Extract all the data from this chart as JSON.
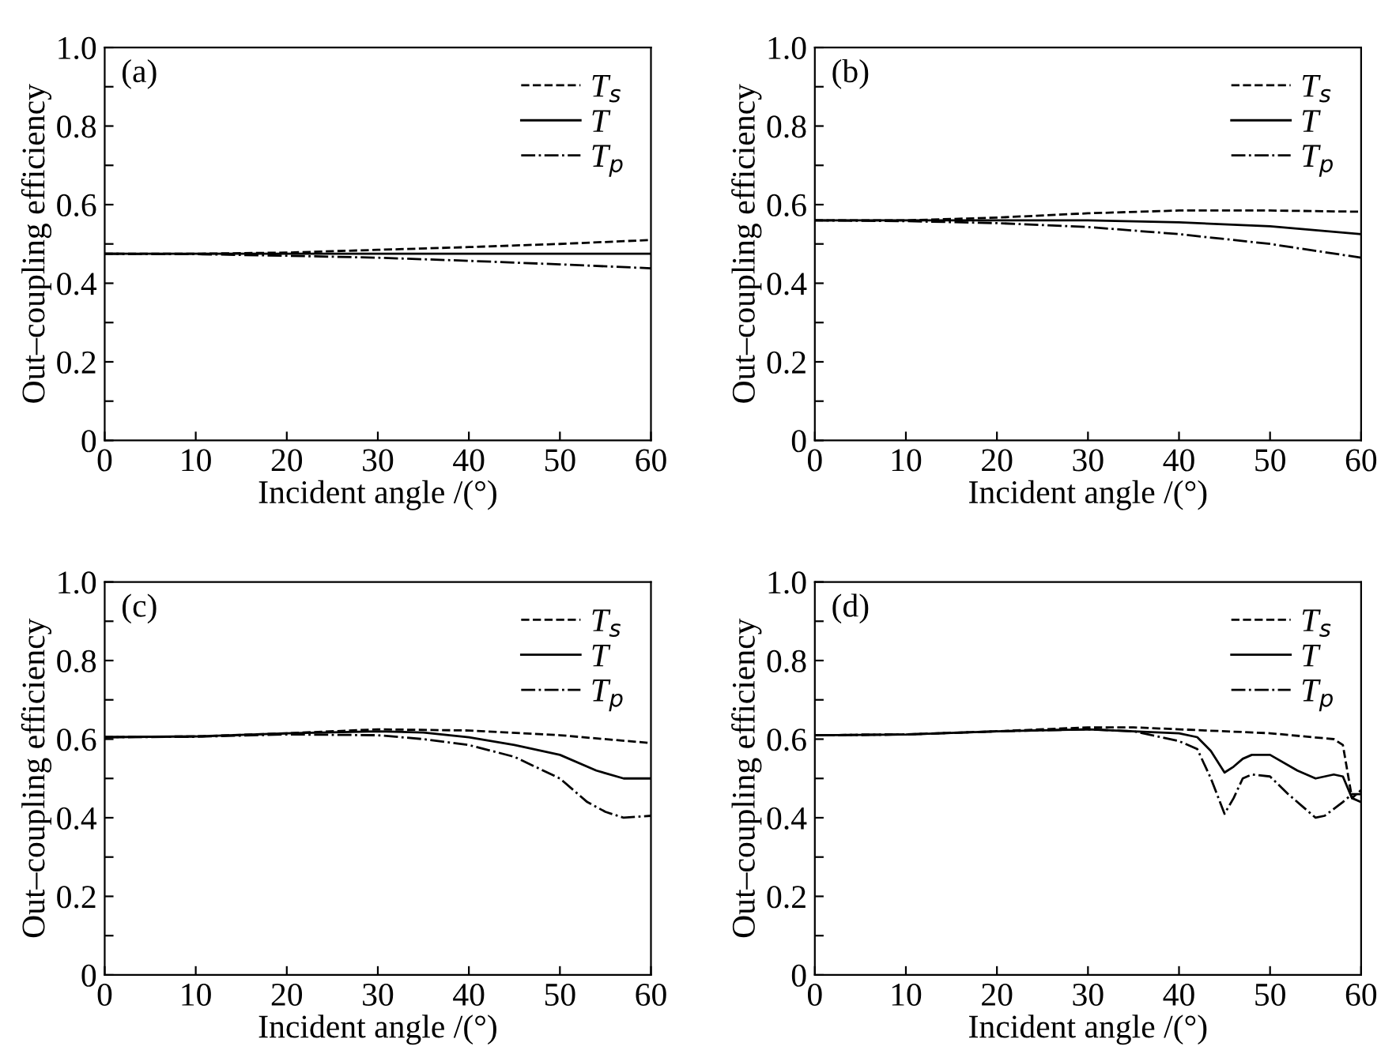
{
  "chart_data": [
    {
      "type": "line",
      "xlabel": "Incident angle /(°)",
      "ylabel": "Out–coupling efficiency",
      "annotations": [
        "(a)"
      ],
      "xlim": [
        0,
        60
      ],
      "ylim": [
        0,
        1.0
      ],
      "xticks": [
        0,
        10,
        20,
        30,
        40,
        50,
        60
      ],
      "yticks": [
        0,
        {
          "value": 0.1,
          "label": null
        },
        0.2,
        {
          "value": 0.3,
          "label": null
        },
        0.4,
        {
          "value": 0.5,
          "label": null
        },
        0.6,
        {
          "value": 0.7,
          "label": null
        },
        0.8,
        {
          "value": 0.9,
          "label": null
        },
        {
          "value": 1.0,
          "label": "1.0"
        }
      ],
      "grid": false,
      "legend": "top right",
      "series": [
        {
          "name": "T$_{s}$",
          "color": "#000000",
          "line_style": "dashed",
          "x": [
            0,
            10,
            20,
            30,
            40,
            50,
            60
          ],
          "values": [
            0.475,
            0.475,
            0.478,
            0.485,
            0.492,
            0.5,
            0.51
          ]
        },
        {
          "name": "T",
          "color": "#000000",
          "line_style": "solid",
          "x": [
            0,
            10,
            20,
            30,
            40,
            50,
            60
          ],
          "values": [
            0.475,
            0.475,
            0.475,
            0.475,
            0.475,
            0.475,
            0.475
          ]
        },
        {
          "name": "T$_{p}$",
          "color": "#000000",
          "line_style": "dashdot",
          "x": [
            0,
            10,
            20,
            30,
            40,
            50,
            60
          ],
          "values": [
            0.475,
            0.474,
            0.47,
            0.465,
            0.457,
            0.448,
            0.438
          ]
        }
      ]
    },
    {
      "type": "line",
      "xlabel": "Incident angle /(°)",
      "ylabel": "Out–coupling efficiency",
      "annotations": [
        "(b)"
      ],
      "xlim": [
        0,
        60
      ],
      "ylim": [
        0,
        1.0
      ],
      "xticks": [
        0,
        10,
        20,
        30,
        40,
        50,
        60
      ],
      "yticks": [
        0,
        {
          "value": 0.1,
          "label": null
        },
        0.2,
        {
          "value": 0.3,
          "label": null
        },
        0.4,
        {
          "value": 0.5,
          "label": null
        },
        0.6,
        {
          "value": 0.7,
          "label": null
        },
        0.8,
        {
          "value": 0.9,
          "label": null
        },
        {
          "value": 1.0,
          "label": "1.0"
        }
      ],
      "grid": false,
      "legend": "top right",
      "series": [
        {
          "name": "T$_{s}$",
          "color": "#000000",
          "line_style": "dashed",
          "x": [
            0,
            10,
            20,
            30,
            40,
            50,
            60
          ],
          "values": [
            0.56,
            0.56,
            0.567,
            0.578,
            0.585,
            0.585,
            0.582
          ]
        },
        {
          "name": "T",
          "color": "#000000",
          "line_style": "solid",
          "x": [
            0,
            10,
            20,
            30,
            40,
            50,
            60
          ],
          "values": [
            0.56,
            0.56,
            0.56,
            0.56,
            0.555,
            0.545,
            0.525
          ]
        },
        {
          "name": "T$_{p}$",
          "color": "#000000",
          "line_style": "dashdot",
          "x": [
            0,
            10,
            20,
            30,
            40,
            50,
            60
          ],
          "values": [
            0.56,
            0.558,
            0.553,
            0.543,
            0.525,
            0.5,
            0.465
          ]
        }
      ]
    },
    {
      "type": "line",
      "xlabel": "Incident angle /(°)",
      "ylabel": "Out–coupling efficiency",
      "annotations": [
        "(c)"
      ],
      "xlim": [
        0,
        60
      ],
      "ylim": [
        0,
        1.0
      ],
      "xticks": [
        0,
        10,
        20,
        30,
        40,
        50,
        60
      ],
      "yticks": [
        0,
        {
          "value": 0.1,
          "label": null
        },
        0.2,
        {
          "value": 0.3,
          "label": null
        },
        0.4,
        {
          "value": 0.5,
          "label": null
        },
        0.6,
        {
          "value": 0.7,
          "label": null
        },
        0.8,
        {
          "value": 0.9,
          "label": null
        },
        {
          "value": 1.0,
          "label": "1.0"
        }
      ],
      "grid": false,
      "legend": "top right",
      "series": [
        {
          "name": "T$_{s}$",
          "color": "#000000",
          "line_style": "dashed",
          "x": [
            0,
            10,
            20,
            30,
            40,
            50,
            60
          ],
          "values": [
            0.605,
            0.607,
            0.615,
            0.625,
            0.622,
            0.61,
            0.59
          ]
        },
        {
          "name": "T",
          "color": "#000000",
          "line_style": "solid",
          "x": [
            0,
            10,
            20,
            30,
            35,
            40,
            45,
            50,
            54,
            57,
            60
          ],
          "values": [
            0.605,
            0.607,
            0.615,
            0.62,
            0.617,
            0.605,
            0.585,
            0.56,
            0.52,
            0.5,
            0.5
          ]
        },
        {
          "name": "T$_{p}$",
          "color": "#000000",
          "line_style": "dashdot",
          "x": [
            0,
            10,
            20,
            30,
            35,
            40,
            45,
            50,
            53,
            55,
            57,
            60
          ],
          "values": [
            0.605,
            0.606,
            0.612,
            0.61,
            0.6,
            0.585,
            0.555,
            0.5,
            0.44,
            0.415,
            0.4,
            0.405
          ]
        }
      ]
    },
    {
      "type": "line",
      "xlabel": "Incident angle /(°)",
      "ylabel": "Out–coupling efficiency",
      "annotations": [
        "(d)"
      ],
      "xlim": [
        0,
        60
      ],
      "ylim": [
        0,
        1.0
      ],
      "xticks": [
        0,
        10,
        20,
        30,
        40,
        50,
        60
      ],
      "yticks": [
        0,
        {
          "value": 0.1,
          "label": null
        },
        0.2,
        {
          "value": 0.3,
          "label": null
        },
        0.4,
        {
          "value": 0.5,
          "label": null
        },
        0.6,
        {
          "value": 0.7,
          "label": null
        },
        0.8,
        {
          "value": 0.9,
          "label": null
        },
        {
          "value": 1.0,
          "label": "1.0"
        }
      ],
      "grid": false,
      "legend": "top right",
      "series": [
        {
          "name": "T$_{s}$",
          "color": "#000000",
          "line_style": "dashed",
          "x": [
            0,
            10,
            20,
            30,
            35,
            40,
            50,
            57,
            58,
            59,
            60
          ],
          "values": [
            0.61,
            0.612,
            0.62,
            0.63,
            0.63,
            0.625,
            0.615,
            0.6,
            0.585,
            0.45,
            0.47
          ]
        },
        {
          "name": "T",
          "color": "#000000",
          "line_style": "solid",
          "x": [
            0,
            10,
            20,
            30,
            40,
            42,
            43.5,
            45,
            46,
            47,
            48,
            50,
            53,
            55,
            57,
            58,
            59,
            60
          ],
          "values": [
            0.61,
            0.612,
            0.62,
            0.625,
            0.615,
            0.605,
            0.57,
            0.515,
            0.53,
            0.55,
            0.56,
            0.56,
            0.52,
            0.5,
            0.51,
            0.505,
            0.45,
            0.44
          ]
        },
        {
          "name": "T$_{p}$",
          "color": "#000000",
          "line_style": "dashdot",
          "x": [
            0,
            10,
            20,
            30,
            35,
            40,
            42,
            43.5,
            45,
            46,
            47,
            48,
            50,
            52,
            55,
            56,
            58,
            59,
            60
          ],
          "values": [
            0.61,
            0.612,
            0.62,
            0.625,
            0.62,
            0.595,
            0.575,
            0.5,
            0.41,
            0.45,
            0.5,
            0.51,
            0.505,
            0.46,
            0.4,
            0.405,
            0.44,
            0.46,
            0.46
          ]
        }
      ]
    }
  ]
}
